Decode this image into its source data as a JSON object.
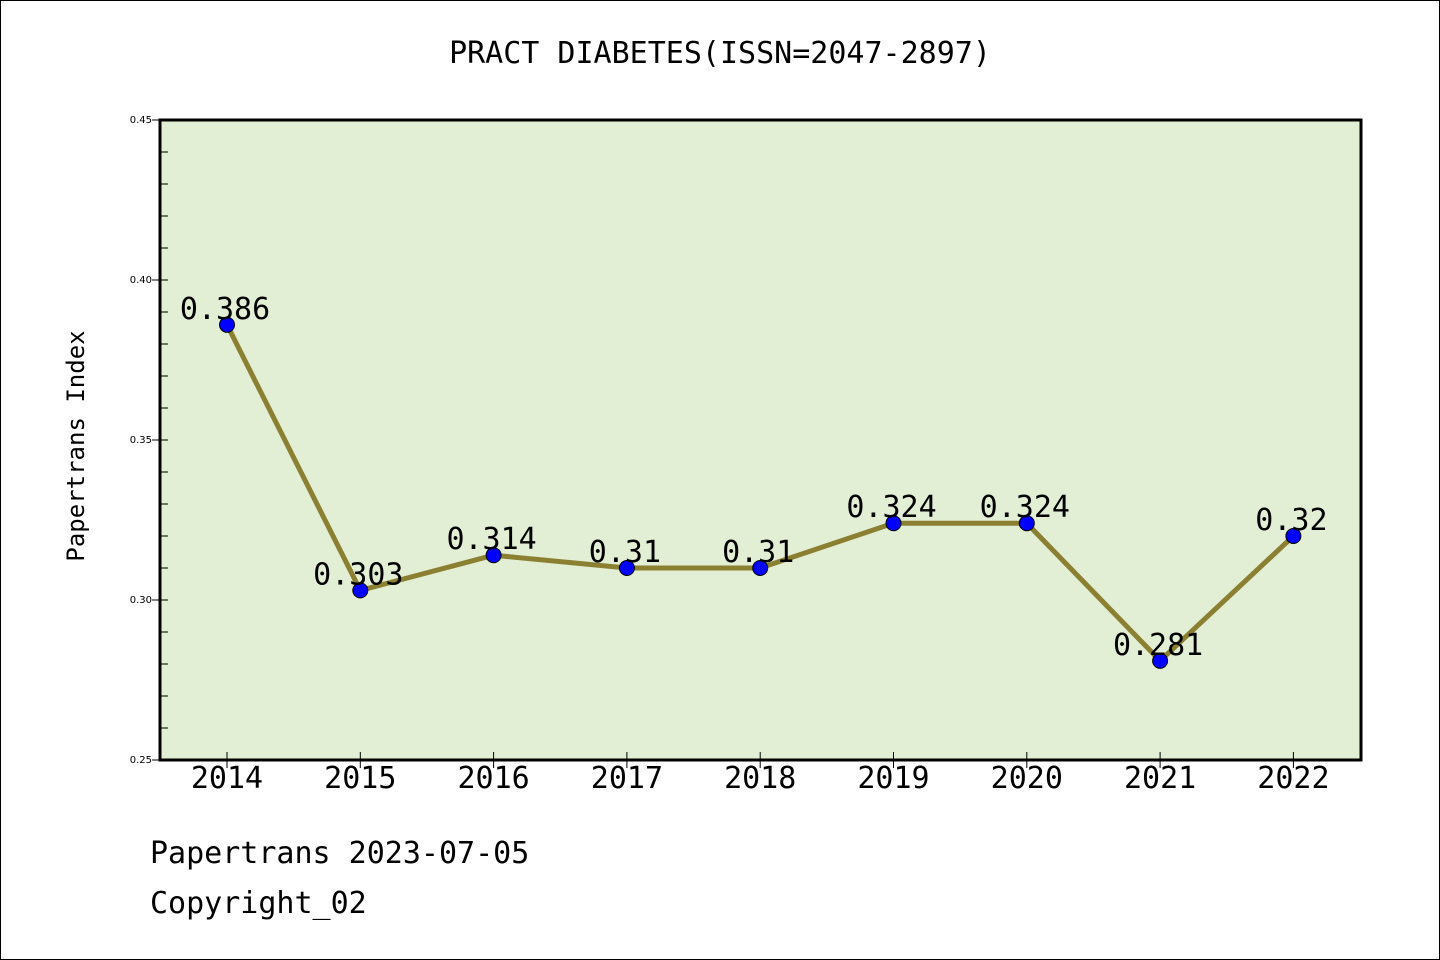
{
  "chart_data": {
    "type": "line",
    "title": "PRACT DIABETES(ISSN=2047-2897)",
    "xlabel": "",
    "ylabel": "Papertrans Index",
    "categories": [
      "2014",
      "2015",
      "2016",
      "2017",
      "2018",
      "2019",
      "2020",
      "2021",
      "2022"
    ],
    "values": [
      0.386,
      0.303,
      0.314,
      0.31,
      0.31,
      0.324,
      0.324,
      0.281,
      0.32
    ],
    "value_labels": [
      "0.386",
      "0.303",
      "0.314",
      "0.31",
      "0.31",
      "0.324",
      "0.324",
      "0.281",
      "0.32"
    ],
    "ylim": [
      0.25,
      0.45
    ],
    "yticks": [
      0.25,
      0.3,
      0.35,
      0.4,
      0.45
    ],
    "ytick_labels": [
      "0.25",
      "0.30",
      "0.35",
      "0.40",
      "0.45"
    ],
    "grid": false,
    "colors": {
      "plot_background": "#e2efd5",
      "line": "#8b8032",
      "marker": "#0000ff"
    }
  },
  "footer": {
    "source": "Papertrans 2023-07-05",
    "copyright": "Copyright_02"
  }
}
